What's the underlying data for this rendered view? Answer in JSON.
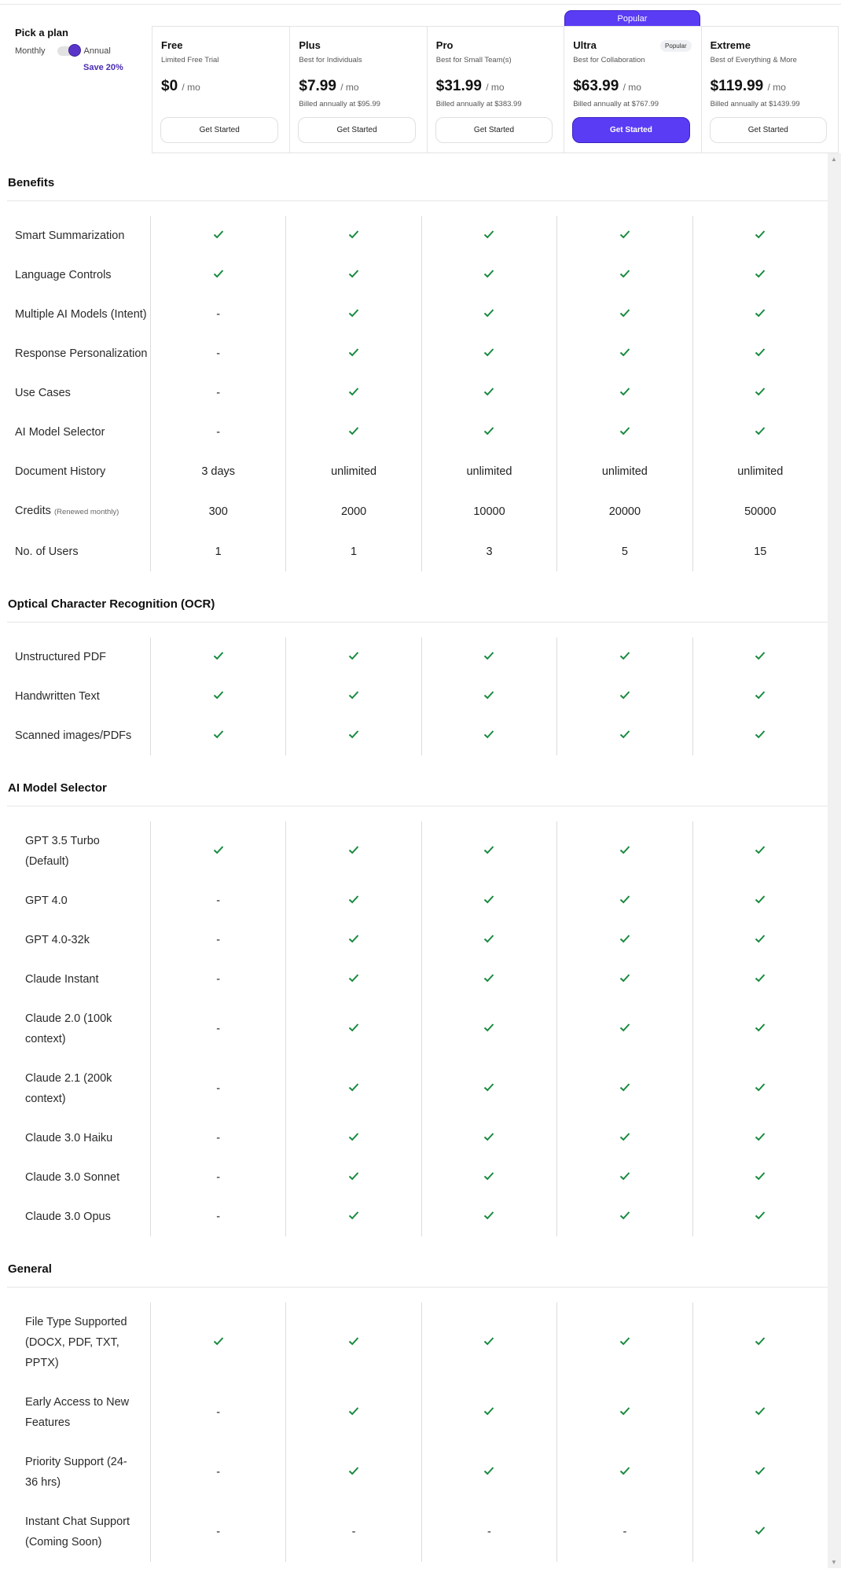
{
  "picker": {
    "title": "Pick a plan",
    "monthly": "Monthly",
    "annual": "Annual",
    "save": "Save 20%",
    "billing": "annual"
  },
  "popular_tab": "Popular",
  "plans": [
    {
      "name": "Free",
      "subtitle": "Limited Free Trial",
      "price": "$0",
      "per": "/ mo",
      "billed": "",
      "cta": "Get Started"
    },
    {
      "name": "Plus",
      "subtitle": "Best for Individuals",
      "price": "$7.99",
      "per": "/ mo",
      "billed": "Billed annually at $95.99",
      "cta": "Get Started"
    },
    {
      "name": "Pro",
      "subtitle": "Best for Small Team(s)",
      "price": "$31.99",
      "per": "/ mo",
      "billed": "Billed annually at $383.99",
      "cta": "Get Started"
    },
    {
      "name": "Ultra",
      "subtitle": "Best for Collaboration",
      "price": "$63.99",
      "per": "/ mo",
      "billed": "Billed annually at $767.99",
      "cta": "Get Started",
      "badge": "Popular",
      "featured": true
    },
    {
      "name": "Extreme",
      "subtitle": "Best of Everything & More",
      "price": "$119.99",
      "per": "/ mo",
      "billed": "Billed annually at $1439.99",
      "cta": "Get Started"
    }
  ],
  "colors": {
    "accent": "#5a3cf5",
    "check": "#178a3e",
    "save": "#4a2bb3"
  },
  "sections": [
    {
      "title": "Benefits",
      "indent": false,
      "rows": [
        {
          "label": "Smart Summarization",
          "values": [
            true,
            true,
            true,
            true,
            true
          ]
        },
        {
          "label": "Language Controls",
          "values": [
            true,
            true,
            true,
            true,
            true
          ]
        },
        {
          "label": "Multiple AI Models (Intent)",
          "values": [
            "-",
            true,
            true,
            true,
            true
          ]
        },
        {
          "label": "Response Personalization",
          "values": [
            "-",
            true,
            true,
            true,
            true
          ]
        },
        {
          "label": "Use Cases",
          "values": [
            "-",
            true,
            true,
            true,
            true
          ]
        },
        {
          "label": "AI Model Selector",
          "values": [
            "-",
            true,
            true,
            true,
            true
          ]
        },
        {
          "label": "Document History",
          "values": [
            "3 days",
            "unlimited",
            "unlimited",
            "unlimited",
            "unlimited"
          ]
        },
        {
          "label": "Credits",
          "note": "(Renewed monthly)",
          "values": [
            "300",
            "2000",
            "10000",
            "20000",
            "50000"
          ]
        },
        {
          "label": "No. of Users",
          "values": [
            "1",
            "1",
            "3",
            "5",
            "15"
          ]
        }
      ]
    },
    {
      "title": "Optical Character Recognition (OCR)",
      "indent": false,
      "rows": [
        {
          "label": "Unstructured PDF",
          "values": [
            true,
            true,
            true,
            true,
            true
          ]
        },
        {
          "label": "Handwritten Text",
          "values": [
            true,
            true,
            true,
            true,
            true
          ]
        },
        {
          "label": "Scanned images/PDFs",
          "values": [
            true,
            true,
            true,
            true,
            true
          ]
        }
      ]
    },
    {
      "title": "AI Model Selector",
      "indent": true,
      "rows": [
        {
          "label": "GPT 3.5 Turbo (Default)",
          "values": [
            true,
            true,
            true,
            true,
            true
          ]
        },
        {
          "label": "GPT 4.0",
          "values": [
            "-",
            true,
            true,
            true,
            true
          ]
        },
        {
          "label": "GPT 4.0-32k",
          "values": [
            "-",
            true,
            true,
            true,
            true
          ]
        },
        {
          "label": "Claude Instant",
          "values": [
            "-",
            true,
            true,
            true,
            true
          ]
        },
        {
          "label": "Claude 2.0 (100k context)",
          "values": [
            "-",
            true,
            true,
            true,
            true
          ]
        },
        {
          "label": "Claude 2.1 (200k context)",
          "values": [
            "-",
            true,
            true,
            true,
            true
          ]
        },
        {
          "label": "Claude 3.0 Haiku",
          "values": [
            "-",
            true,
            true,
            true,
            true
          ]
        },
        {
          "label": "Claude 3.0 Sonnet",
          "values": [
            "-",
            true,
            true,
            true,
            true
          ]
        },
        {
          "label": "Claude 3.0 Opus",
          "values": [
            "-",
            true,
            true,
            true,
            true
          ]
        }
      ]
    },
    {
      "title": "General",
      "indent": true,
      "rows": [
        {
          "label": "File Type Supported (DOCX, PDF, TXT, PPTX)",
          "values": [
            true,
            true,
            true,
            true,
            true
          ]
        },
        {
          "label": "Early Access to New Features",
          "values": [
            "-",
            true,
            true,
            true,
            true
          ]
        },
        {
          "label": "Priority Support (24-36 hrs)",
          "values": [
            "-",
            true,
            true,
            true,
            true
          ]
        },
        {
          "label": "Instant Chat Support (Coming Soon)",
          "values": [
            "-",
            "-",
            "-",
            "-",
            true
          ]
        }
      ]
    }
  ]
}
